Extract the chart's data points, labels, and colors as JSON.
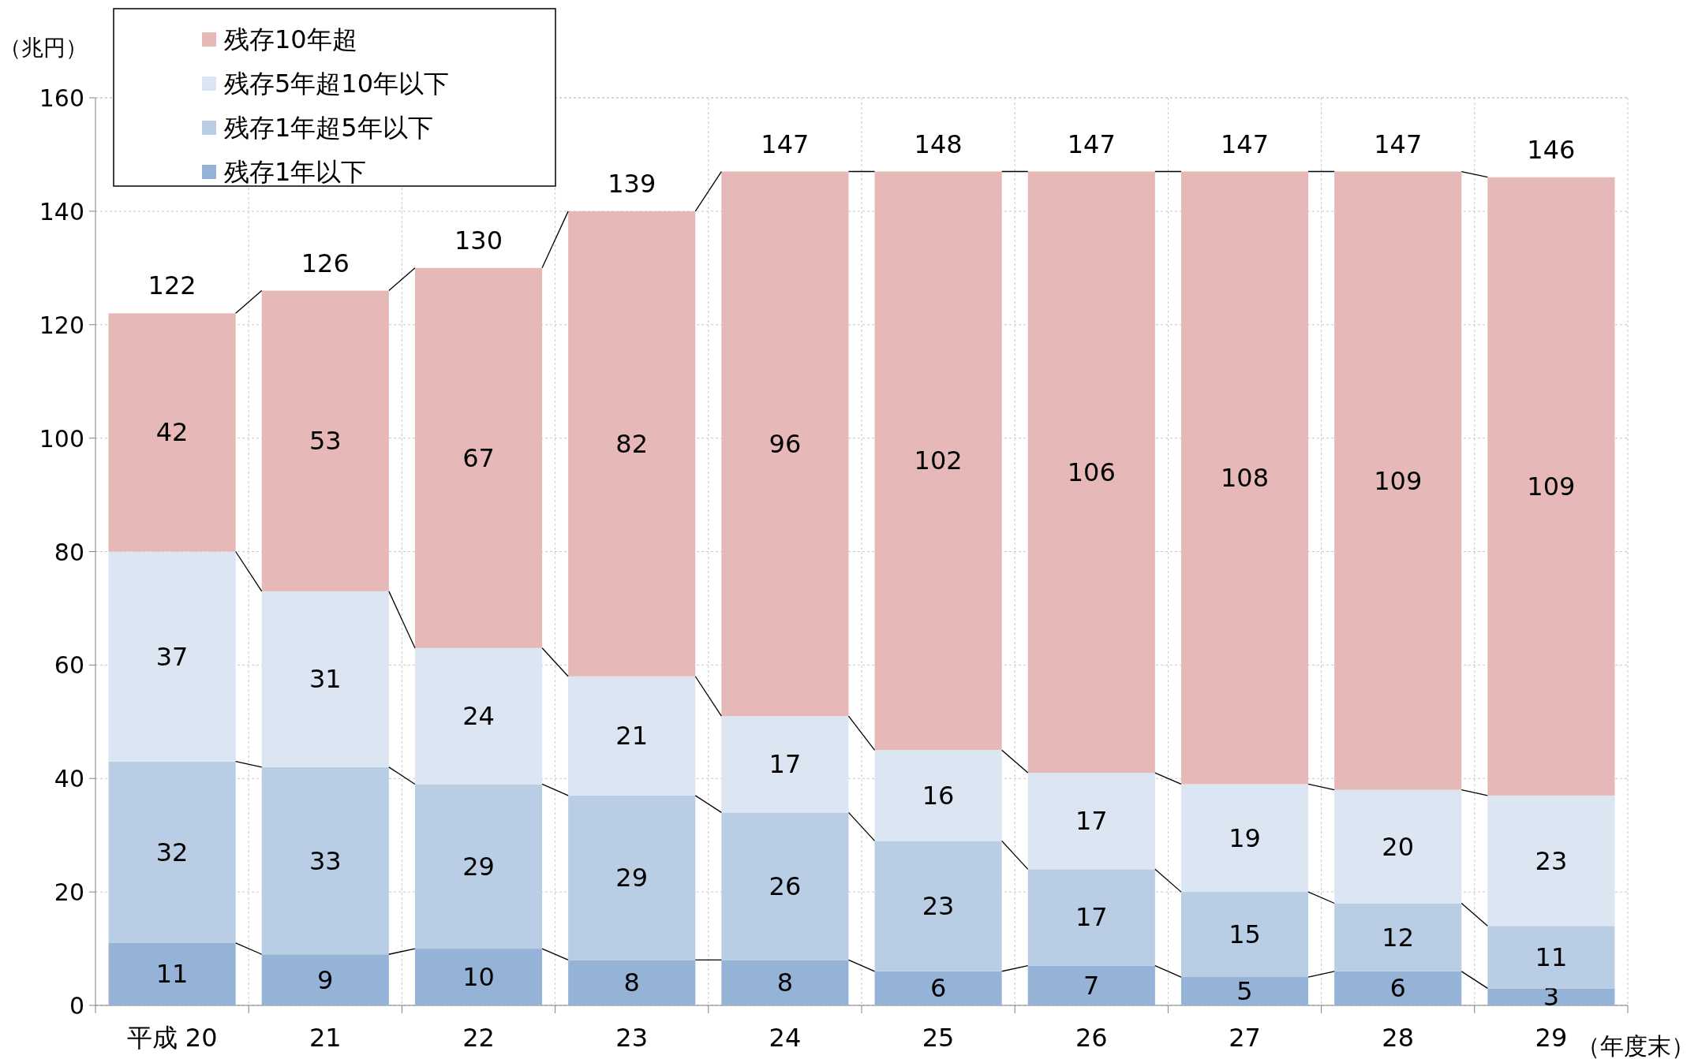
{
  "chart_data": {
    "type": "bar",
    "stacked": true,
    "ylabel": "（兆円）",
    "xlabel": "（年度末）",
    "categories": [
      "平成 20",
      "21",
      "22",
      "23",
      "24",
      "25",
      "26",
      "27",
      "28",
      "29"
    ],
    "series": [
      {
        "name": "残存1年以下",
        "color": "#95b3d7",
        "values": [
          11,
          9,
          10,
          8,
          8,
          6,
          7,
          5,
          6,
          3
        ]
      },
      {
        "name": "残存1年超5年以下",
        "color": "#b9cde5",
        "values": [
          32,
          33,
          29,
          29,
          26,
          23,
          17,
          15,
          12,
          11
        ]
      },
      {
        "name": "残存5年超10年以下",
        "color": "#dce6f2",
        "values": [
          37,
          31,
          24,
          21,
          17,
          16,
          17,
          19,
          20,
          23
        ]
      },
      {
        "name": "残存10年超",
        "color": "#e6b8b7",
        "values": [
          42,
          53,
          67,
          82,
          96,
          102,
          106,
          108,
          109,
          109
        ]
      }
    ],
    "totals": [
      "122",
      "126",
      "130",
      "139",
      "147",
      "148",
      "147",
      "147",
      "147",
      "146"
    ],
    "data_labels": true,
    "ylim": [
      0,
      160
    ],
    "yticks": [
      0,
      20,
      40,
      60,
      80,
      100,
      120,
      140,
      160
    ],
    "grid": true,
    "legend": "top left"
  }
}
